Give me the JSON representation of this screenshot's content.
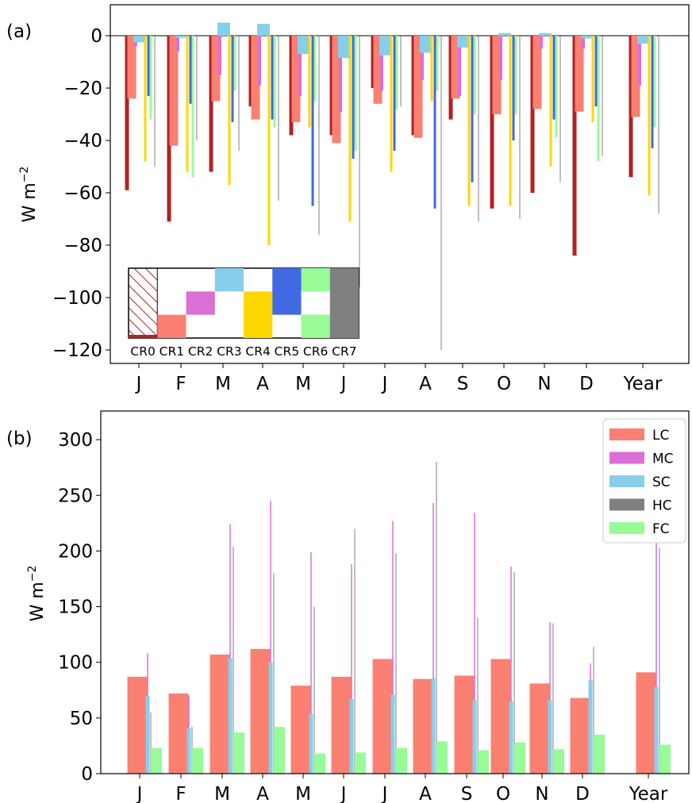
{
  "colors": {
    "CR0": "#b22222",
    "CR1": "#fa8072",
    "CR2": "#da70d6",
    "CR3": "#87ceeb",
    "CR4": "#ffd700",
    "CR5": "#4169e1",
    "CR6": "#98fb98",
    "CR7": "#808080",
    "LC": "#fa8072",
    "MC": "#da70d6",
    "SC": "#87ceeb",
    "HC": "#808080",
    "FC": "#98fb98"
  },
  "chart_data": [
    {
      "panel_label": "(a)",
      "type": "bar",
      "ylabel": "W m$^{-2}$",
      "ylabel_main": "W m",
      "ylabel_sup": "−2",
      "ylim": [
        -125,
        12
      ],
      "yticks": [
        0,
        -20,
        -40,
        -60,
        -80,
        -100,
        -120
      ],
      "ytick_labels": [
        "0",
        "−20",
        "−40",
        "−60",
        "−80",
        "−100",
        "−120"
      ],
      "categories": [
        "J",
        "F",
        "M",
        "A",
        "M",
        "J",
        "J",
        "A",
        "S",
        "O",
        "N",
        "D",
        "Year"
      ],
      "zero_line": true,
      "series": [
        {
          "name": "CR0",
          "values": [
            -59,
            -71,
            -52,
            -27,
            -38,
            -38,
            -20,
            -38,
            -32,
            -66,
            -60,
            -84,
            -54
          ]
        },
        {
          "name": "CR1",
          "values": [
            -24,
            -42,
            -25,
            -32,
            -33,
            -41,
            -26,
            -39,
            -24,
            -30,
            -28,
            -29,
            -31
          ]
        },
        {
          "name": "CR2",
          "values": [
            -4,
            -6,
            -15,
            -19,
            -23,
            -29,
            -21,
            -17,
            -23,
            -17,
            -5,
            -5,
            -19
          ]
        },
        {
          "name": "CR3",
          "values": [
            -2.5,
            -0.8,
            5,
            4.5,
            -7,
            -8.5,
            -7.5,
            -6.5,
            -4.5,
            1,
            1,
            -1,
            -3
          ]
        },
        {
          "name": "CR4",
          "values": [
            -48,
            -52,
            -57,
            -80,
            -35,
            -71,
            -52,
            -25,
            -65,
            -65,
            -50,
            -33,
            -61
          ]
        },
        {
          "name": "CR5",
          "values": [
            -23,
            -26,
            -33,
            -32,
            -65,
            -47,
            -44,
            -66,
            -56,
            -40,
            -32,
            -27,
            -43
          ]
        },
        {
          "name": "CR6",
          "values": [
            -32,
            -54,
            -21,
            -35,
            -25,
            -44,
            -28,
            -21,
            -30,
            -30,
            -39,
            -48,
            -35
          ]
        },
        {
          "name": "CR7",
          "values": [
            -50,
            -40,
            -44,
            -63,
            -76,
            -96,
            -27,
            -120,
            -71,
            -70,
            -56,
            -46,
            -68
          ]
        }
      ],
      "inset_legend": {
        "labels": [
          "CR0",
          "CR1",
          "CR2",
          "CR3",
          "CR4",
          "CR5",
          "CR6",
          "CR7"
        ],
        "description": "Inset key of cloud-type composition per cloud regime: CR0 hatched; CR1 LC; CR2 MC; CR3 SC; CR4 LC-level yellow; CR5 blue; CR6 FC and SC; CR7 HC"
      }
    },
    {
      "panel_label": "(b)",
      "type": "bar",
      "ylabel": "W m$^{-2}$",
      "ylabel_main": "W m",
      "ylabel_sup": "−2",
      "ylim": [
        0,
        325
      ],
      "yticks": [
        0,
        50,
        100,
        150,
        200,
        250,
        300
      ],
      "ytick_labels": [
        "0",
        "50",
        "100",
        "150",
        "200",
        "250",
        "300"
      ],
      "categories": [
        "J",
        "F",
        "M",
        "A",
        "M",
        "J",
        "J",
        "A",
        "S",
        "O",
        "N",
        "D",
        "Year"
      ],
      "legend": {
        "position": "top-right",
        "entries": [
          "LC",
          "MC",
          "SC",
          "HC",
          "FC"
        ]
      },
      "series": [
        {
          "name": "LC",
          "values": [
            87,
            72,
            107,
            112,
            79,
            87,
            103,
            85,
            88,
            103,
            81,
            68,
            91
          ]
        },
        {
          "name": "MC",
          "values": [
            108,
            70,
            224,
            245,
            199,
            188,
            227,
            243,
            234,
            186,
            136,
            99,
            211
          ]
        },
        {
          "name": "SC",
          "values": [
            70,
            41,
            104,
            100,
            54,
            67,
            71,
            86,
            66,
            65,
            66,
            84,
            78
          ]
        },
        {
          "name": "HC",
          "values": [
            55,
            42,
            204,
            180,
            150,
            220,
            198,
            280,
            140,
            181,
            135,
            114,
            203
          ]
        },
        {
          "name": "FC",
          "values": [
            23,
            23,
            37,
            42,
            18,
            19,
            23,
            29,
            21,
            28,
            22,
            35,
            26
          ]
        }
      ]
    }
  ]
}
